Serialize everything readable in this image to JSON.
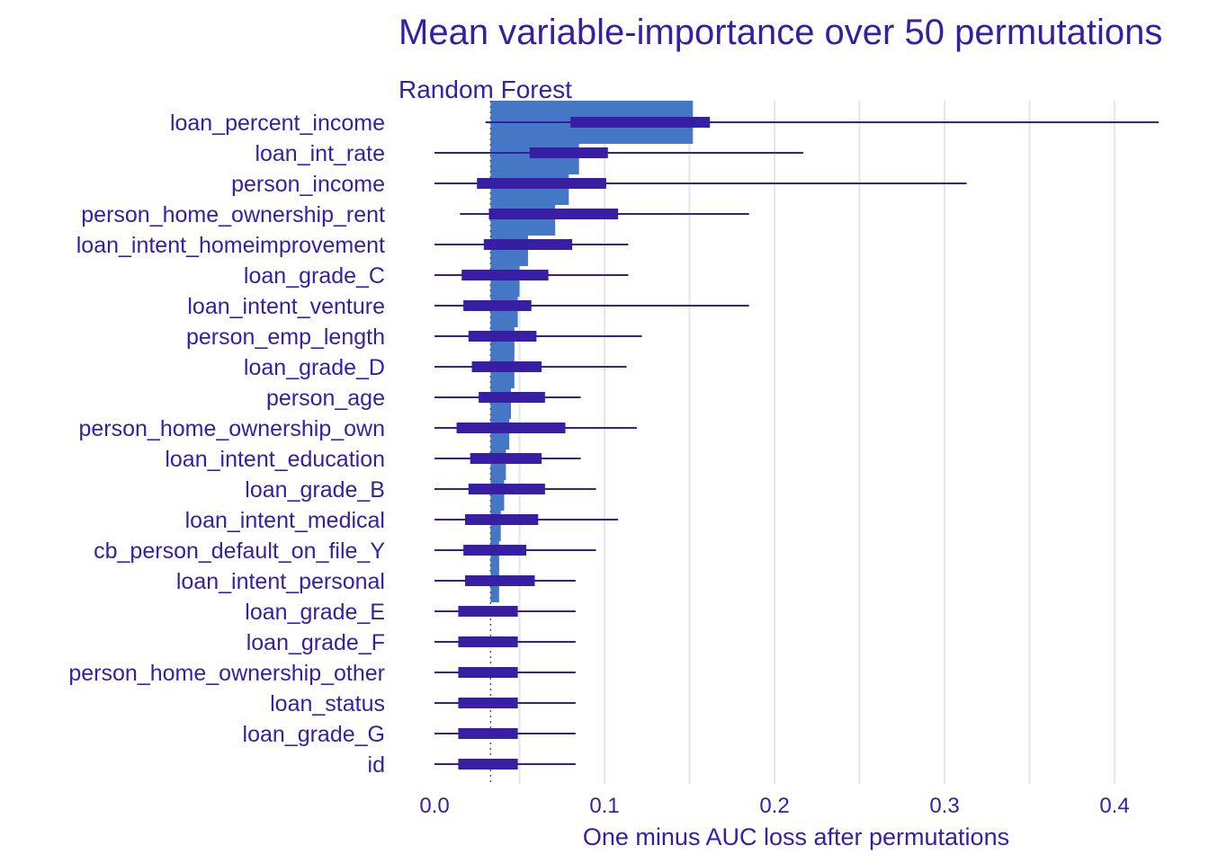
{
  "chart_data": {
    "type": "bar",
    "title": "Mean variable-importance over 50 permutations",
    "subtitle": "Random Forest",
    "xlabel": "One minus AUC loss after permutations",
    "ylabel": "",
    "xlim": [
      0,
      0.43
    ],
    "x_ticks": [
      0.0,
      0.1,
      0.2,
      0.3,
      0.4
    ],
    "x_tick_labels": [
      "0.0",
      "0.1",
      "0.2",
      "0.3",
      "0.4"
    ],
    "baseline": 0.033,
    "grid": true,
    "colors": {
      "bar": "#4477c4",
      "boxplot": "#371ea3",
      "text": "#371ea3",
      "grid": "#e6e6e6"
    },
    "categories": [
      "loan_percent_income",
      "loan_int_rate",
      "person_income",
      "person_home_ownership_rent",
      "loan_intent_homeimprovement",
      "loan_grade_C",
      "loan_intent_venture",
      "person_emp_length",
      "loan_grade_D",
      "person_age",
      "person_home_ownership_own",
      "loan_intent_education",
      "loan_grade_B",
      "loan_intent_medical",
      "cb_person_default_on_file_Y",
      "loan_intent_personal",
      "loan_grade_E",
      "loan_grade_F",
      "person_home_ownership_other",
      "loan_status",
      "loan_grade_G",
      "id"
    ],
    "values": [
      0.152,
      0.085,
      0.079,
      0.071,
      0.055,
      0.05,
      0.049,
      0.047,
      0.047,
      0.045,
      0.044,
      0.042,
      0.041,
      0.039,
      0.038,
      0.038,
      0.033,
      0.033,
      0.033,
      0.033,
      0.033,
      0.033
    ],
    "whisker_min": [
      0.03,
      0.0,
      0.0,
      0.015,
      0.0,
      0.0,
      0.0,
      0.0,
      0.0,
      0.0,
      0.0,
      0.0,
      0.0,
      0.0,
      0.0,
      0.0,
      0.0,
      0.0,
      0.0,
      0.0,
      0.0,
      0.0
    ],
    "box_q1": [
      0.08,
      0.056,
      0.025,
      0.032,
      0.029,
      0.016,
      0.017,
      0.02,
      0.022,
      0.026,
      0.013,
      0.021,
      0.02,
      0.018,
      0.017,
      0.018,
      0.014,
      0.014,
      0.014,
      0.014,
      0.014,
      0.014
    ],
    "box_q3": [
      0.162,
      0.102,
      0.101,
      0.108,
      0.081,
      0.067,
      0.057,
      0.06,
      0.063,
      0.065,
      0.077,
      0.063,
      0.065,
      0.061,
      0.054,
      0.059,
      0.049,
      0.049,
      0.049,
      0.049,
      0.049,
      0.049
    ],
    "whisker_max": [
      0.426,
      0.217,
      0.313,
      0.185,
      0.114,
      0.114,
      0.185,
      0.122,
      0.113,
      0.086,
      0.119,
      0.086,
      0.095,
      0.108,
      0.095,
      0.083,
      0.083,
      0.083,
      0.083,
      0.083,
      0.083,
      0.083
    ]
  }
}
